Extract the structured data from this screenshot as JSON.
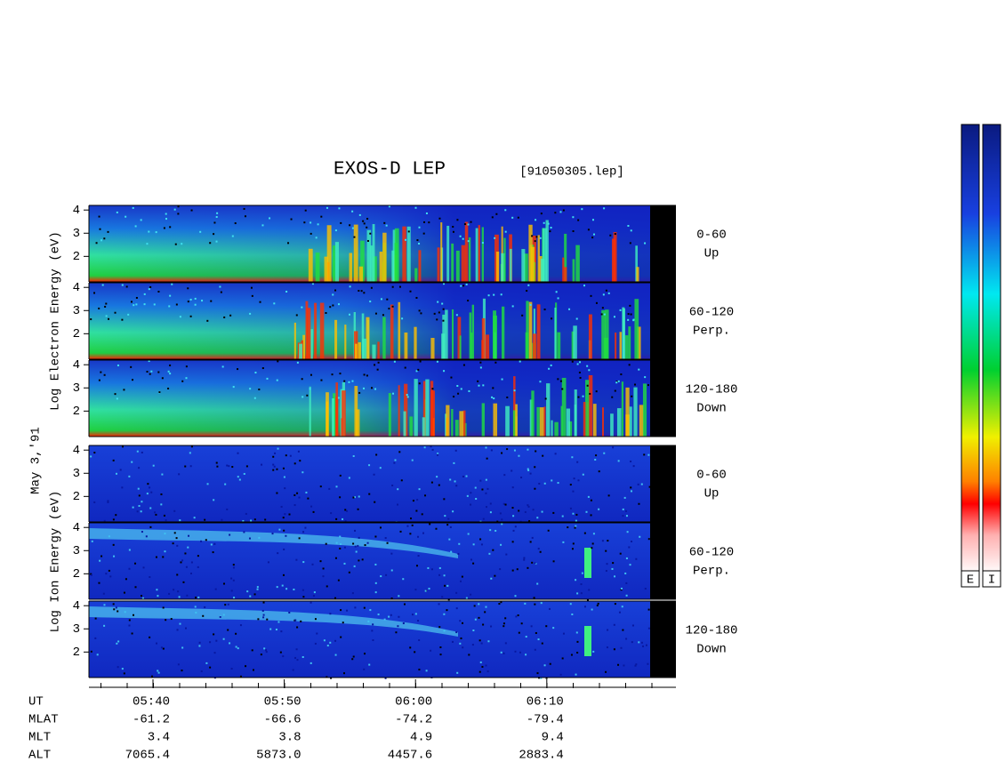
{
  "chart_data": {
    "type": "spectrogram",
    "title": "EXOS-D LEP",
    "file_label": "[91050305.lep]",
    "date_label": "May  3,'91",
    "ylim": [
      0.9,
      4.2
    ],
    "yticks": [
      2,
      3,
      4
    ],
    "groups": [
      {
        "axis_label": "Log  Electron  Energy (eV)",
        "kind": "electron",
        "panels": [
          {
            "label": [
              "0-60",
              "Up"
            ]
          },
          {
            "label": [
              "60-120",
              "Perp."
            ]
          },
          {
            "label": [
              "120-180",
              "Down"
            ]
          }
        ]
      },
      {
        "axis_label": "Log  Ion  Energy (eV)",
        "kind": "ion",
        "panels": [
          {
            "label": [
              "0-60",
              "Up"
            ]
          },
          {
            "label": [
              "60-120",
              "Perp."
            ]
          },
          {
            "label": [
              "120-180",
              "Down"
            ]
          }
        ]
      }
    ],
    "ephemeris": [
      {
        "label": "UT",
        "values": [
          "05:40",
          "05:50",
          "06:00",
          "06:10"
        ]
      },
      {
        "label": "MLAT",
        "values": [
          "-61.2",
          "-66.6",
          "-74.2",
          "-79.4"
        ]
      },
      {
        "label": "MLT",
        "values": [
          "3.4",
          "3.8",
          "4.9",
          "9.4"
        ]
      },
      {
        "label": "ALT",
        "values": [
          "7065.4",
          "5873.0",
          "4457.6",
          "2883.4"
        ]
      }
    ],
    "colorbars": [
      "E",
      "I"
    ]
  }
}
